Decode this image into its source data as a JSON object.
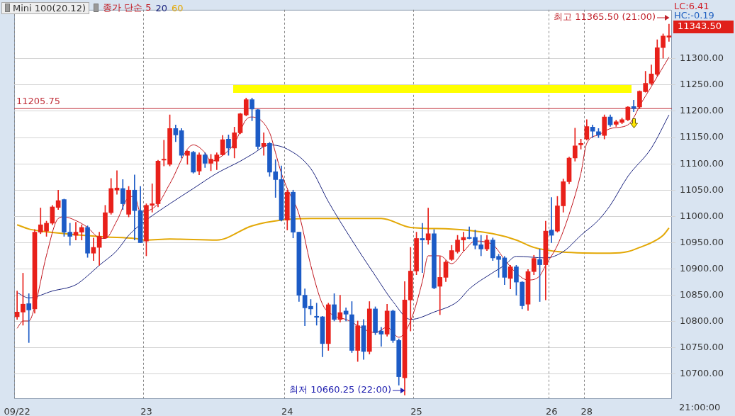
{
  "chart_data": {
    "type": "candlestick",
    "title": "Mini 100(20.12)",
    "categories": [
      "09/22",
      null,
      null,
      null,
      null,
      null,
      null,
      null,
      null,
      null,
      null,
      null,
      null,
      null,
      null,
      null,
      null,
      null,
      null,
      null,
      null,
      null,
      "23",
      null,
      null,
      null,
      null,
      null,
      null,
      null,
      null,
      null,
      null,
      null,
      null,
      null,
      null,
      null,
      null,
      null,
      null,
      null,
      null,
      null,
      null,
      null,
      "24",
      null,
      null,
      null,
      null,
      null,
      null,
      null,
      null,
      null,
      null,
      null,
      null,
      null,
      null,
      null,
      null,
      null,
      null,
      null,
      null,
      null,
      "25",
      null,
      null,
      null,
      null,
      null,
      null,
      null,
      null,
      null,
      null,
      null,
      null,
      null,
      null,
      null,
      null,
      null,
      null,
      null,
      null,
      null,
      null,
      "26",
      null,
      null,
      null,
      null,
      null,
      "28",
      null,
      null,
      null,
      null,
      null,
      null,
      null,
      null,
      null,
      null,
      null,
      null,
      null,
      null
    ],
    "ohlc": [
      [
        10809,
        10858,
        10804,
        10818
      ],
      [
        10818,
        10892,
        10793,
        10833
      ],
      [
        10834,
        10853,
        10760,
        10822
      ],
      [
        10824,
        10975,
        10816,
        10970
      ],
      [
        10970,
        11016,
        10967,
        10984
      ],
      [
        10972,
        10991,
        10962,
        10987
      ],
      [
        10987,
        11021,
        10984,
        11018
      ],
      [
        11017,
        11050,
        11013,
        11030
      ],
      [
        11032,
        11033,
        10962,
        10970
      ],
      [
        10970,
        10987,
        10945,
        10962
      ],
      [
        10964,
        10989,
        10955,
        10970
      ],
      [
        10970,
        10984,
        10955,
        10979
      ],
      [
        10979,
        10982,
        10922,
        10930
      ],
      [
        10930,
        10959,
        10916,
        10941
      ],
      [
        10941,
        10970,
        10907,
        10962
      ],
      [
        10959,
        11021,
        10958,
        11007
      ],
      [
        11007,
        11072,
        11004,
        11053
      ],
      [
        11050,
        11087,
        11042,
        11054
      ],
      [
        11053,
        11070,
        11013,
        11024
      ],
      [
        11004,
        11057,
        10999,
        11050
      ],
      [
        11050,
        11079,
        10955,
        11011
      ],
      [
        11011,
        11057,
        10950,
        10950
      ],
      [
        10953,
        11024,
        10925,
        11021
      ],
      [
        11021,
        11062,
        11008,
        11024
      ],
      [
        11024,
        11107,
        11018,
        11105
      ],
      [
        11107,
        11145,
        11096,
        11109
      ],
      [
        11099,
        11193,
        11096,
        11167
      ],
      [
        11167,
        11174,
        11142,
        11155
      ],
      [
        11163,
        11167,
        11111,
        11116
      ],
      [
        11116,
        11125,
        11099,
        11124
      ],
      [
        11122,
        11124,
        11082,
        11084
      ],
      [
        11086,
        11121,
        11079,
        11117
      ],
      [
        11117,
        11121,
        11093,
        11101
      ],
      [
        11101,
        11118,
        11087,
        11109
      ],
      [
        11105,
        11121,
        11089,
        11117
      ],
      [
        11117,
        11154,
        11116,
        11146
      ],
      [
        11147,
        11155,
        11116,
        11130
      ],
      [
        11130,
        11170,
        11111,
        11159
      ],
      [
        11159,
        11196,
        11157,
        11195
      ],
      [
        11193,
        11225,
        11191,
        11222
      ],
      [
        11222,
        11225,
        11182,
        11204
      ],
      [
        11203,
        11204,
        11128,
        11133
      ],
      [
        11133,
        11159,
        11116,
        11139
      ],
      [
        11139,
        11141,
        11076,
        11084
      ],
      [
        11085,
        11108,
        11036,
        11070
      ],
      [
        11070,
        11096,
        10991,
        10993
      ],
      [
        10993,
        11050,
        10974,
        11046
      ],
      [
        11046,
        11050,
        10959,
        10970
      ],
      [
        10970,
        10970,
        10838,
        10850
      ],
      [
        10850,
        10862,
        10792,
        10826
      ],
      [
        10829,
        10842,
        10813,
        10824
      ],
      [
        10810,
        10835,
        10793,
        10808
      ],
      [
        10809,
        10810,
        10733,
        10758
      ],
      [
        10758,
        10835,
        10745,
        10832
      ],
      [
        10832,
        10853,
        10801,
        10804
      ],
      [
        10804,
        10850,
        10799,
        10817
      ],
      [
        10820,
        10826,
        10801,
        10814
      ],
      [
        10813,
        10838,
        10741,
        10745
      ],
      [
        10745,
        10801,
        10724,
        10792
      ],
      [
        10792,
        10804,
        10728,
        10743
      ],
      [
        10743,
        10838,
        10738,
        10824
      ],
      [
        10824,
        10828,
        10775,
        10779
      ],
      [
        10782,
        10789,
        10753,
        10776
      ],
      [
        10776,
        10833,
        10772,
        10820
      ],
      [
        10820,
        10822,
        10760,
        10764
      ],
      [
        10764,
        10767,
        10679,
        10695
      ],
      [
        10693,
        10876,
        10660.25,
        10841
      ],
      [
        10841,
        10941,
        10782,
        10896
      ],
      [
        10896,
        10970,
        10889,
        10958
      ],
      [
        10958,
        10987,
        10893,
        10955
      ],
      [
        10955,
        11016,
        10947,
        10967
      ],
      [
        10967,
        10975,
        10862,
        10864
      ],
      [
        10867,
        10924,
        10813,
        10884
      ],
      [
        10884,
        10916,
        10876,
        10913
      ],
      [
        10918,
        10945,
        10916,
        10935
      ],
      [
        10933,
        10964,
        10930,
        10955
      ],
      [
        10955,
        10970,
        10935,
        10960
      ],
      [
        10960,
        10980,
        10957,
        10958
      ],
      [
        10960,
        10974,
        10938,
        10945
      ],
      [
        10946,
        10964,
        10925,
        10938
      ],
      [
        10938,
        10964,
        10935,
        10955
      ],
      [
        10955,
        10959,
        10916,
        10921
      ],
      [
        10924,
        10928,
        10884,
        10918
      ],
      [
        10921,
        10924,
        10870,
        10884
      ],
      [
        10882,
        10907,
        10862,
        10904
      ],
      [
        10904,
        10907,
        10850,
        10875
      ],
      [
        10875,
        10876,
        10824,
        10830
      ],
      [
        10833,
        10899,
        10821,
        10895
      ],
      [
        10895,
        10926,
        10889,
        10920
      ],
      [
        10918,
        10938,
        10838,
        10908
      ],
      [
        10908,
        10991,
        10841,
        10972
      ],
      [
        10974,
        11036,
        10950,
        10964
      ],
      [
        10972,
        11038,
        10970,
        11020
      ],
      [
        11020,
        11071,
        11008,
        11066
      ],
      [
        11066,
        11113,
        11062,
        11111
      ],
      [
        11111,
        11168,
        11105,
        11134
      ],
      [
        11136,
        11147,
        11128,
        11139
      ],
      [
        11147,
        11184,
        11145,
        11171
      ],
      [
        11170,
        11174,
        11150,
        11162
      ],
      [
        11161,
        11167,
        11150,
        11155
      ],
      [
        11154,
        11193,
        11147,
        11189
      ],
      [
        11189,
        11193,
        11171,
        11174
      ],
      [
        11175,
        11183,
        11171,
        11180
      ],
      [
        11179,
        11187,
        11176,
        11184
      ],
      [
        11184,
        11209,
        11182,
        11208
      ],
      [
        11209,
        11221,
        11199,
        11205
      ],
      [
        11208,
        11239,
        11205,
        11238
      ],
      [
        11237,
        11276,
        11236,
        11253
      ],
      [
        11253,
        11288,
        11250,
        11271
      ],
      [
        11270,
        11336,
        11267,
        11321
      ],
      [
        11321,
        11347,
        11301,
        11343
      ],
      [
        11341,
        11365.5,
        11333,
        11343.5
      ]
    ],
    "colors": [
      "#e8201a",
      "#e8201a",
      "#1c5bc6",
      "#e8201a",
      "#e8201a",
      "#e8201a",
      "#e8201a",
      "#e8201a",
      "#1c5bc6",
      "#1c5bc6",
      "#e8201a",
      "#e8201a",
      "#1c5bc6",
      "#e8201a",
      "#e8201a",
      "#e8201a",
      "#e8201a",
      "#e8201a",
      "#1c5bc6",
      "#e8201a",
      "#1c5bc6",
      "#1c5bc6",
      "#e8201a",
      "#e8201a",
      "#e8201a",
      "#e8201a",
      "#e8201a",
      "#1c5bc6",
      "#1c5bc6",
      "#e8201a",
      "#1c5bc6",
      "#e8201a",
      "#1c5bc6",
      "#e8201a",
      "#e8201a",
      "#e8201a",
      "#1c5bc6",
      "#e8201a",
      "#e8201a",
      "#e8201a",
      "#1c5bc6",
      "#1c5bc6",
      "#e8201a",
      "#1c5bc6",
      "#1c5bc6",
      "#1c5bc6",
      "#e8201a",
      "#1c5bc6",
      "#1c5bc6",
      "#1c5bc6",
      "#1c5bc6",
      "#1c5bc6",
      "#1c5bc6",
      "#e8201a",
      "#1c5bc6",
      "#e8201a",
      "#1c5bc6",
      "#1c5bc6",
      "#e8201a",
      "#1c5bc6",
      "#e8201a",
      "#1c5bc6",
      "#1c5bc6",
      "#e8201a",
      "#1c5bc6",
      "#1c5bc6",
      "#e8201a",
      "#e8201a",
      "#e8201a",
      "#1c5bc6",
      "#e8201a",
      "#1c5bc6",
      "#e8201a",
      "#e8201a",
      "#e8201a",
      "#e8201a",
      "#e8201a",
      "#1c5bc6",
      "#1c5bc6",
      "#1c5bc6",
      "#e8201a",
      "#1c5bc6",
      "#1c5bc6",
      "#1c5bc6",
      "#e8201a",
      "#1c5bc6",
      "#1c5bc6",
      "#e8201a",
      "#e8201a",
      "#1c5bc6",
      "#e8201a",
      "#1c5bc6",
      "#e8201a",
      "#e8201a",
      "#e8201a",
      "#e8201a",
      "#e8201a",
      "#e8201a",
      "#1c5bc6",
      "#1c5bc6",
      "#e8201a",
      "#1c5bc6",
      "#e8201a",
      "#e8201a",
      "#e8201a",
      "#1c5bc6",
      "#e8201a",
      "#e8201a",
      "#e8201a",
      "#e8201a",
      "#e8201a",
      "#e8201a"
    ],
    "series": [
      {
        "type": "line",
        "name": "종가 단순 5",
        "color": "#c0141c",
        "values": [
          10787,
          10801,
          10801,
          10828,
          null,
          10926,
          null,
          10996,
          10999,
          null,
          10992,
          null,
          10979,
          null,
          10959,
          10958,
          null,
          10992,
          null,
          11036,
          11038,
          11008,
          null,
          null,
          11024,
          null,
          11062,
          null,
          null,
          null,
          11136,
          null,
          11121,
          11105,
          null,
          11116,
          null,
          11139,
          null,
          11184,
          11189,
          null,
          null,
          11159,
          11121,
          11082,
          11053,
          null,
          11004,
          null,
          10907,
          null,
          10833,
          null,
          10811,
          null,
          10804,
          null,
          null,
          null,
          null,
          10779,
          null,
          10789,
          null,
          10770,
          null,
          10801,
          null,
          10876,
          10925,
          null,
          10925,
          null,
          10910,
          null,
          10933,
          null,
          10953,
          null,
          null,
          10946,
          null,
          10918,
          null,
          10892,
          null,
          10879,
          null,
          10887,
          10907,
          null,
          10945,
          null,
          11004,
          null,
          11082,
          11139,
          null,
          11155,
          null,
          11167,
          null,
          null,
          11174,
          11188,
          11210,
          null,
          11247,
          null,
          null,
          11303
        ]
      },
      {
        "type": "line",
        "name": "20",
        "color": "#1a237e",
        "values": [
          10855,
          null,
          10845,
          null,
          null,
          null,
          10858,
          null,
          null,
          null,
          10870,
          null,
          10887,
          null,
          10907,
          null,
          null,
          10935,
          null,
          10964,
          null,
          null,
          10993,
          null,
          null,
          null,
          11024,
          null,
          null,
          null,
          11053,
          null,
          null,
          null,
          11082,
          null,
          null,
          null,
          11105,
          null,
          11118,
          null,
          null,
          11136,
          null,
          null,
          11128,
          null,
          null,
          null,
          11091,
          null,
          null,
          11028,
          null,
          null,
          null,
          10955,
          null,
          null,
          null,
          10887,
          null,
          null,
          10838,
          null,
          null,
          10804,
          null,
          null,
          null,
          10818,
          null,
          null,
          null,
          10838,
          null,
          10862,
          null,
          null,
          null,
          10893,
          null,
          10907,
          null,
          10924,
          null,
          null,
          null,
          null,
          10921,
          null,
          null,
          10933,
          null,
          null,
          10964,
          null,
          null,
          10993,
          null,
          11021,
          null,
          null,
          11076,
          null,
          null,
          null,
          11130,
          null,
          null,
          11193
        ]
      },
      {
        "type": "line",
        "name": "60",
        "color": "#e3a806",
        "values": [
          10984,
          null,
          10976,
          null,
          10972,
          null,
          null,
          null,
          null,
          10966,
          null,
          null,
          null,
          null,
          null,
          10961,
          null,
          null,
          null,
          null,
          10958,
          null,
          10955,
          null,
          null,
          null,
          10957,
          null,
          null,
          null,
          null,
          null,
          null,
          null,
          10955,
          null,
          null,
          null,
          null,
          null,
          10982,
          null,
          null,
          null,
          null,
          10993,
          null,
          null,
          null,
          null,
          10996,
          null,
          null,
          null,
          null,
          null,
          null,
          null,
          null,
          10996,
          null,
          null,
          10996,
          null,
          null,
          null,
          null,
          10979,
          null,
          null,
          null,
          null,
          null,
          null,
          10976,
          null,
          null,
          null,
          null,
          null,
          null,
          10967,
          null,
          null,
          null,
          10955,
          null,
          null,
          10941,
          null,
          null,
          null,
          10933,
          null,
          null,
          null,
          null,
          null,
          null,
          null,
          10930,
          10930,
          null,
          null,
          10933,
          null,
          10941,
          null,
          10950,
          null,
          10964,
          10978
        ]
      }
    ],
    "ylim": [
      10654,
      11393
    ],
    "yticks": [
      {
        "value": 10700,
        "label": "10700.00"
      },
      {
        "value": 10750,
        "label": "10750.00"
      },
      {
        "value": 10800,
        "label": "10800.00"
      },
      {
        "value": 10850,
        "label": "10850.00"
      },
      {
        "value": 10900,
        "label": "10900.00"
      },
      {
        "value": 10950,
        "label": "10950.00"
      },
      {
        "value": 11000,
        "label": "11000.00"
      },
      {
        "value": 11050,
        "label": "11050.00"
      },
      {
        "value": 11100,
        "label": "11100.00"
      },
      {
        "value": 11150,
        "label": "11150.00"
      },
      {
        "value": 11200,
        "label": "11200.00"
      },
      {
        "value": 11250,
        "label": "11250.00"
      },
      {
        "value": 11300,
        "label": "11300.00"
      }
    ],
    "ref_lines": [
      {
        "axis": "y",
        "value": 11205.75,
        "label": "11205.75",
        "color": "#c0303a"
      }
    ],
    "annotations": [
      "최고 11365.50 (21:00)",
      "최저 10660.25 (22:00)",
      "11343.50",
      "LC:6.41",
      "HC:-0.19",
      "21:00:00"
    ],
    "grid": true,
    "legend": "top left"
  }
}
